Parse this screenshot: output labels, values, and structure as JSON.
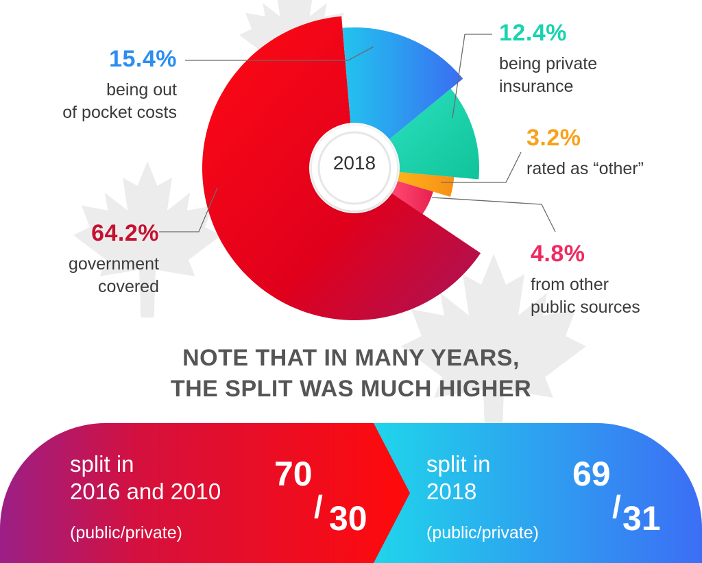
{
  "chart_data": {
    "type": "pie",
    "center_label": "2018",
    "slices": [
      {
        "label": "government covered",
        "value": 64.2,
        "value_text": "64.2%",
        "color": "#e8101e"
      },
      {
        "label": "being out of pocket costs",
        "value": 15.4,
        "value_text": "15.4%",
        "color": "#2b8ef0"
      },
      {
        "label": "being private insurance",
        "value": 12.4,
        "value_text": "12.4%",
        "color": "#19d3b0"
      },
      {
        "label": "rated as “other”",
        "value": 3.2,
        "value_text": "3.2%",
        "color": "#f7a21b"
      },
      {
        "label": "from other public sources",
        "value": 4.8,
        "value_text": "4.8%",
        "color": "#ee2a5f"
      }
    ]
  },
  "callouts": {
    "out_of_pocket": {
      "pct": "15.4%",
      "line1": "being out",
      "line2": "of pocket costs",
      "color": "#2b8ef0"
    },
    "private": {
      "pct": "12.4%",
      "line1": "being private",
      "line2": "insurance",
      "color": "#19d3b0"
    },
    "other": {
      "pct": "3.2%",
      "line1": "rated as “other”",
      "color": "#f7a21b"
    },
    "public_other": {
      "pct": "4.8%",
      "line1": "from other",
      "line2": "public sources",
      "color": "#ee2a5f"
    },
    "government": {
      "pct": "64.2%",
      "line1": "government",
      "line2": "covered",
      "color": "#c41230"
    }
  },
  "note": {
    "line1": "NOTE THAT IN MANY YEARS,",
    "line2": "THE SPLIT WAS MUCH HIGHER"
  },
  "banner": {
    "left": {
      "line1": "split in",
      "line2": "2016 and 2010",
      "sub": "(public/private)",
      "public": "70",
      "private": "30"
    },
    "right": {
      "line1": "split in",
      "line2": "2018",
      "sub": "(public/private)",
      "public": "69",
      "private": "31"
    }
  }
}
